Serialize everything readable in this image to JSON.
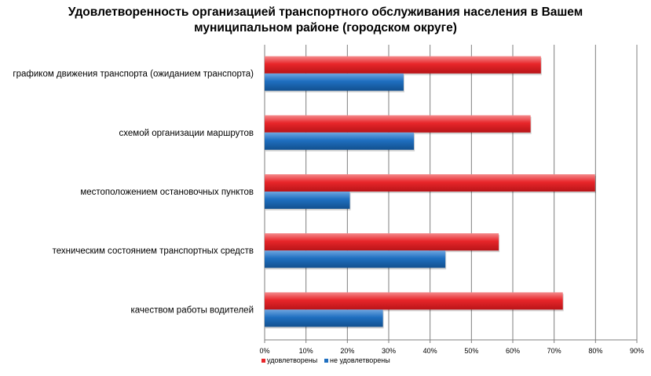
{
  "chart_data": {
    "type": "bar",
    "orientation": "horizontal",
    "title": "Удовлетворенность организацией транспортного обслуживания населения в Вашем муниципальном районе (городском округе)",
    "title_lines": [
      "Удовлетворенность организацией транспортного обслуживания  населения в Вашем",
      "муниципальном районе (городском округе)"
    ],
    "categories": [
      "графиком движения транспорта (ожиданием транспорта)",
      "схемой организации маршрутов",
      "местоположением остановочных пунктов",
      "техническим состоянием транспортных средств",
      "качеством работы водителей"
    ],
    "series": [
      {
        "name": "удовлетворены",
        "color": "#e8262a",
        "values": [
          66.8,
          64.3,
          79.9,
          56.6,
          72.1
        ]
      },
      {
        "name": "не удовлетворены",
        "color": "#1f6fc0",
        "values": [
          33.6,
          36.1,
          20.6,
          43.7,
          28.6
        ]
      }
    ],
    "xlim": [
      0,
      90
    ],
    "xticks": [
      0,
      10,
      20,
      30,
      40,
      50,
      60,
      70,
      80,
      90
    ],
    "xtick_labels": [
      "0%",
      "10%",
      "20%",
      "30%",
      "40%",
      "50%",
      "60%",
      "70%",
      "80%",
      "90%"
    ],
    "grid": true,
    "legend_position": "bottom-left"
  }
}
